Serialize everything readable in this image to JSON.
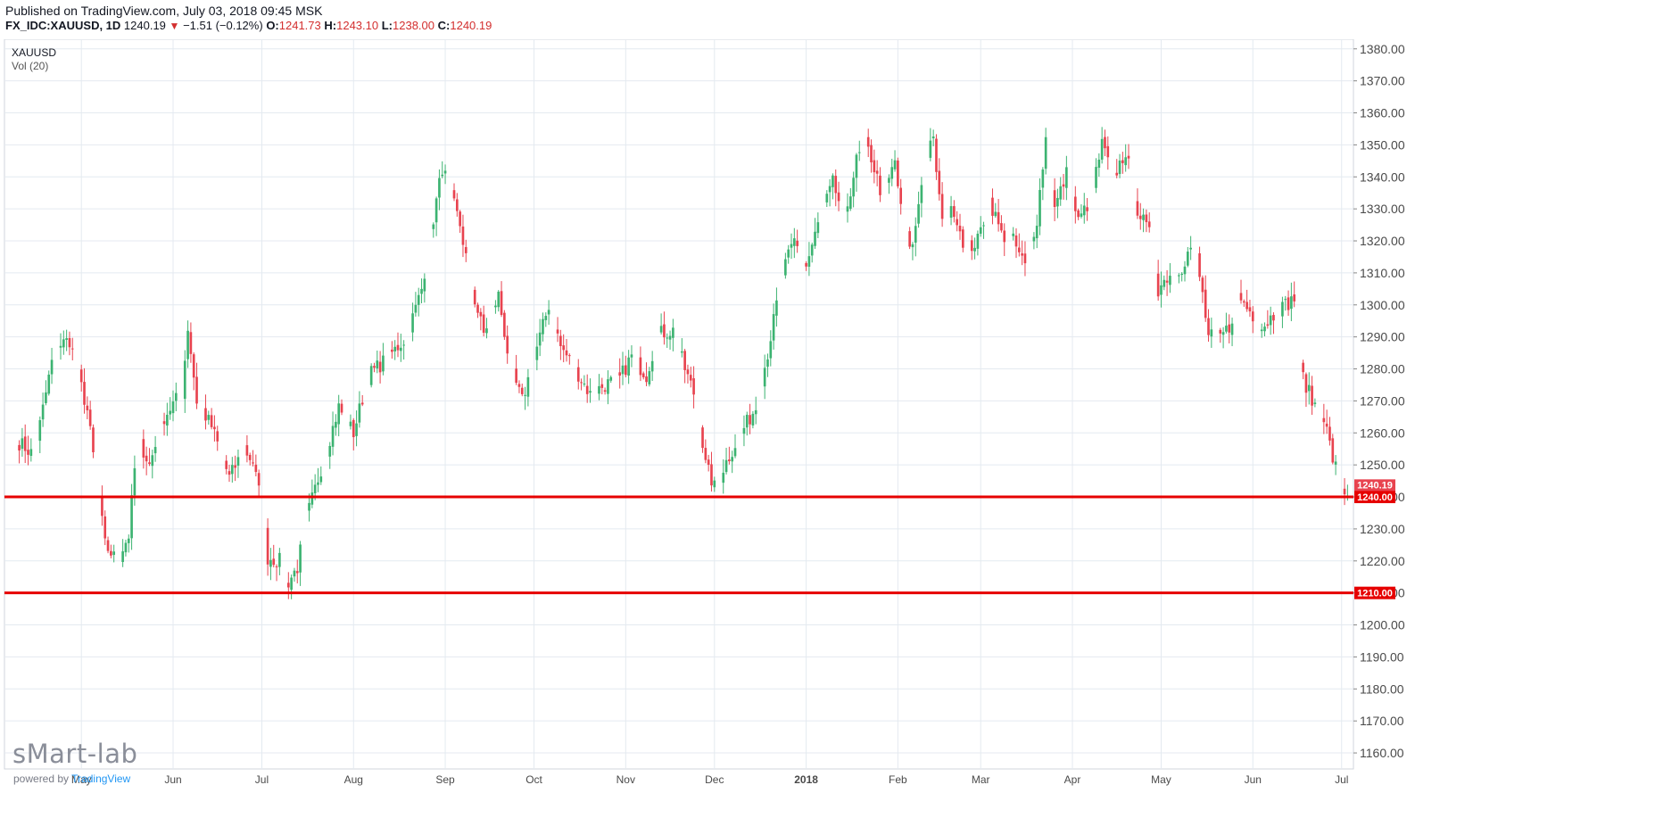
{
  "header": {
    "published": "Published on TradingView.com, July 03, 2018 09:45 MSK",
    "symbol": "FX_IDC:XAUUSD, 1D",
    "last": "1240.19",
    "change": "−1.51 (−0.12%)",
    "open_label": "O:",
    "open": "1241.73",
    "high_label": "H:",
    "high": "1243.10",
    "low_label": "L:",
    "low": "1238.00",
    "close_label": "C:",
    "close": "1240.19"
  },
  "watermark": {
    "brand": "sMart-lab",
    "powered_prefix": "powered by",
    "powered_brand": "TradingView"
  },
  "colors": {
    "up": "#3cb371",
    "down": "#e8434f",
    "level": "#e60000",
    "grid": "#e4eaf0",
    "axis_text": "#4a4a4a",
    "last_tag": "#e8434f"
  },
  "chart_data": {
    "type": "candlestick",
    "symbol_label": "XAUUSD",
    "volume_label": "Vol (20)",
    "y_range": [
      1155,
      1383
    ],
    "y_ticks": [
      "1160.00",
      "1170.00",
      "1180.00",
      "1190.00",
      "1200.00",
      "1210.00",
      "1220.00",
      "1230.00",
      "1240.00",
      "1250.00",
      "1260.00",
      "1270.00",
      "1280.00",
      "1290.00",
      "1300.00",
      "1310.00",
      "1320.00",
      "1330.00",
      "1340.00",
      "1350.00",
      "1360.00",
      "1370.00",
      "1380.00"
    ],
    "x_ticks": [
      {
        "label": "May",
        "day": 21
      },
      {
        "label": "Jun",
        "day": 52
      },
      {
        "label": "Jul",
        "day": 82
      },
      {
        "label": "Aug",
        "day": 113
      },
      {
        "label": "Sep",
        "day": 144
      },
      {
        "label": "Oct",
        "day": 174
      },
      {
        "label": "Nov",
        "day": 205
      },
      {
        "label": "Dec",
        "day": 235
      },
      {
        "label": "2018",
        "day": 266
      },
      {
        "label": "Feb",
        "day": 297
      },
      {
        "label": "Mar",
        "day": 325
      },
      {
        "label": "Apr",
        "day": 356
      },
      {
        "label": "May",
        "day": 386
      },
      {
        "label": "Jun",
        "day": 417
      },
      {
        "label": "Jul",
        "day": 447
      }
    ],
    "x_range_days": [
      -5,
      451
    ],
    "levels": [
      {
        "value": 1240.0,
        "label": "1240.00"
      },
      {
        "value": 1210.0,
        "label": "1210.00"
      }
    ],
    "last_price": {
      "value": 1240.19,
      "label": "1240.19"
    },
    "anchors": [
      {
        "day": 0,
        "price": 1257
      },
      {
        "day": 5,
        "price": 1253
      },
      {
        "day": 12,
        "price": 1287
      },
      {
        "day": 17,
        "price": 1289
      },
      {
        "day": 23,
        "price": 1267
      },
      {
        "day": 29,
        "price": 1225
      },
      {
        "day": 33,
        "price": 1220
      },
      {
        "day": 37,
        "price": 1228
      },
      {
        "day": 40,
        "price": 1259
      },
      {
        "day": 44,
        "price": 1250
      },
      {
        "day": 49,
        "price": 1265
      },
      {
        "day": 55,
        "price": 1273
      },
      {
        "day": 57,
        "price": 1293
      },
      {
        "day": 60,
        "price": 1270
      },
      {
        "day": 65,
        "price": 1262
      },
      {
        "day": 71,
        "price": 1246
      },
      {
        "day": 76,
        "price": 1255
      },
      {
        "day": 79,
        "price": 1251
      },
      {
        "day": 82,
        "price": 1237
      },
      {
        "day": 84,
        "price": 1221
      },
      {
        "day": 88,
        "price": 1220
      },
      {
        "day": 90,
        "price": 1212
      },
      {
        "day": 94,
        "price": 1218
      },
      {
        "day": 97,
        "price": 1233
      },
      {
        "day": 103,
        "price": 1252
      },
      {
        "day": 108,
        "price": 1268
      },
      {
        "day": 113,
        "price": 1260
      },
      {
        "day": 118,
        "price": 1278
      },
      {
        "day": 124,
        "price": 1283
      },
      {
        "day": 131,
        "price": 1290
      },
      {
        "day": 136,
        "price": 1305
      },
      {
        "day": 140,
        "price": 1327
      },
      {
        "day": 143,
        "price": 1343
      },
      {
        "day": 146,
        "price": 1334
      },
      {
        "day": 149,
        "price": 1325
      },
      {
        "day": 153,
        "price": 1305
      },
      {
        "day": 157,
        "price": 1291
      },
      {
        "day": 162,
        "price": 1303
      },
      {
        "day": 166,
        "price": 1280
      },
      {
        "day": 170,
        "price": 1270
      },
      {
        "day": 176,
        "price": 1290
      },
      {
        "day": 179,
        "price": 1300
      },
      {
        "day": 183,
        "price": 1287
      },
      {
        "day": 188,
        "price": 1280
      },
      {
        "day": 193,
        "price": 1272
      },
      {
        "day": 198,
        "price": 1275
      },
      {
        "day": 203,
        "price": 1277
      },
      {
        "day": 207,
        "price": 1284
      },
      {
        "day": 212,
        "price": 1278
      },
      {
        "day": 216,
        "price": 1291
      },
      {
        "day": 221,
        "price": 1292
      },
      {
        "day": 225,
        "price": 1280
      },
      {
        "day": 229,
        "price": 1270
      },
      {
        "day": 232,
        "price": 1250
      },
      {
        "day": 235,
        "price": 1243
      },
      {
        "day": 239,
        "price": 1251
      },
      {
        "day": 244,
        "price": 1260
      },
      {
        "day": 249,
        "price": 1268
      },
      {
        "day": 253,
        "price": 1285
      },
      {
        "day": 258,
        "price": 1310
      },
      {
        "day": 262,
        "price": 1320
      },
      {
        "day": 266,
        "price": 1312
      },
      {
        "day": 270,
        "price": 1325
      },
      {
        "day": 275,
        "price": 1338
      },
      {
        "day": 279,
        "price": 1327
      },
      {
        "day": 283,
        "price": 1345
      },
      {
        "day": 286,
        "price": 1350
      },
      {
        "day": 288,
        "price": 1346
      },
      {
        "day": 292,
        "price": 1333
      },
      {
        "day": 296,
        "price": 1345
      },
      {
        "day": 299,
        "price": 1322
      },
      {
        "day": 302,
        "price": 1318
      },
      {
        "day": 306,
        "price": 1346
      },
      {
        "day": 309,
        "price": 1351
      },
      {
        "day": 312,
        "price": 1325
      },
      {
        "day": 316,
        "price": 1330
      },
      {
        "day": 320,
        "price": 1317
      },
      {
        "day": 324,
        "price": 1320
      },
      {
        "day": 328,
        "price": 1333
      },
      {
        "day": 332,
        "price": 1322
      },
      {
        "day": 336,
        "price": 1320
      },
      {
        "day": 340,
        "price": 1312
      },
      {
        "day": 344,
        "price": 1327
      },
      {
        "day": 347,
        "price": 1352
      },
      {
        "day": 350,
        "price": 1330
      },
      {
        "day": 354,
        "price": 1341
      },
      {
        "day": 358,
        "price": 1326
      },
      {
        "day": 362,
        "price": 1333
      },
      {
        "day": 366,
        "price": 1350
      },
      {
        "day": 370,
        "price": 1340
      },
      {
        "day": 374,
        "price": 1348
      },
      {
        "day": 378,
        "price": 1330
      },
      {
        "day": 382,
        "price": 1322
      },
      {
        "day": 385,
        "price": 1305
      },
      {
        "day": 389,
        "price": 1310
      },
      {
        "day": 393,
        "price": 1312
      },
      {
        "day": 397,
        "price": 1320
      },
      {
        "day": 400,
        "price": 1303
      },
      {
        "day": 402,
        "price": 1290
      },
      {
        "day": 406,
        "price": 1290
      },
      {
        "day": 409,
        "price": 1293
      },
      {
        "day": 412,
        "price": 1303
      },
      {
        "day": 416,
        "price": 1298
      },
      {
        "day": 420,
        "price": 1293
      },
      {
        "day": 424,
        "price": 1297
      },
      {
        "day": 428,
        "price": 1300
      },
      {
        "day": 431,
        "price": 1302
      },
      {
        "day": 433,
        "price": 1280
      },
      {
        "day": 437,
        "price": 1270
      },
      {
        "day": 441,
        "price": 1265
      },
      {
        "day": 444,
        "price": 1252
      },
      {
        "day": 448,
        "price": 1241
      },
      {
        "day": 449,
        "price": 1240.19
      }
    ]
  }
}
